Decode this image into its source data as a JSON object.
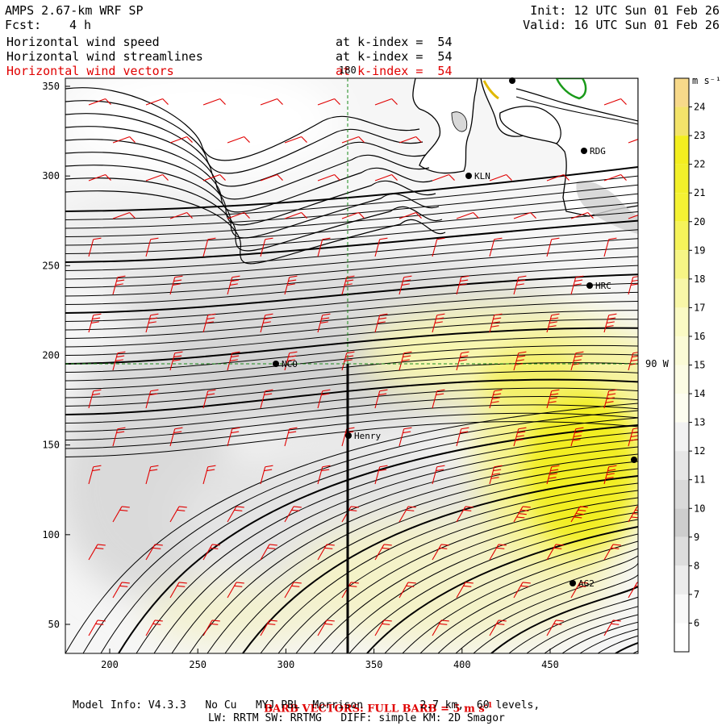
{
  "header": {
    "model": "AMPS 2.67-km WRF SP",
    "fcst_label": "Fcst:",
    "fcst_value": "4 h",
    "init": "Init: 12 UTC Sun 01 Feb 26",
    "valid": "Valid: 16 UTC Sun 01 Feb 26",
    "fields": [
      {
        "name": "Horizontal wind speed",
        "level": "at k-index =  54",
        "color": "#000000"
      },
      {
        "name": "Horizontal wind streamlines",
        "level": "at k-index =  54",
        "color": "#000000"
      },
      {
        "name": "Horizontal wind vectors",
        "level": "at k-index =  54",
        "color": "#e00000"
      }
    ]
  },
  "map": {
    "x_ticks": [
      "200",
      "250",
      "300",
      "350",
      "400",
      "450"
    ],
    "y_ticks": [
      "350",
      "300",
      "250",
      "200",
      "150",
      "100",
      "50"
    ],
    "meridian_label": "180",
    "parallel_label": "90 W",
    "stations": [
      {
        "name": "RDG"
      },
      {
        "name": "KLN"
      },
      {
        "name": "HRC"
      },
      {
        "name": "NCO"
      },
      {
        "name": "Henry"
      },
      {
        "name": "AG2"
      }
    ]
  },
  "colorbar": {
    "unit": "m s⁻¹",
    "levels": [
      "24",
      "23",
      "22",
      "21",
      "20",
      "19",
      "18",
      "17",
      "16",
      "15",
      "14",
      "13",
      "12",
      "11",
      "10",
      "9",
      "8",
      "7",
      "6"
    ],
    "colors": [
      "#f7d98a",
      "#f3e36a",
      "#f3ee1f",
      "#f2f02a",
      "#f4f233",
      "#f5f35a",
      "#f6f585",
      "#f8f7a8",
      "#fafac4",
      "#fbfbd6",
      "#fcfce4",
      "#fdfdf0",
      "#f2f2f2",
      "#e6e6e6",
      "#d9d9d9",
      "#cdcdcd",
      "#dddddd",
      "#ececec",
      "#f8f8f8"
    ]
  },
  "footer": {
    "barb_note_prefix": "BARB VECTORS: FULL BARB = 5 m s",
    "barb_note_sup": "-1",
    "model_info": "Model Info: V4.3.3   No Cu   MYJ PBL  Morrison         2.7 km,  60 levels,",
    "physics": "LW: RRTM SW: RRTMG   DIFF: simple KM: 2D Smagor"
  }
}
